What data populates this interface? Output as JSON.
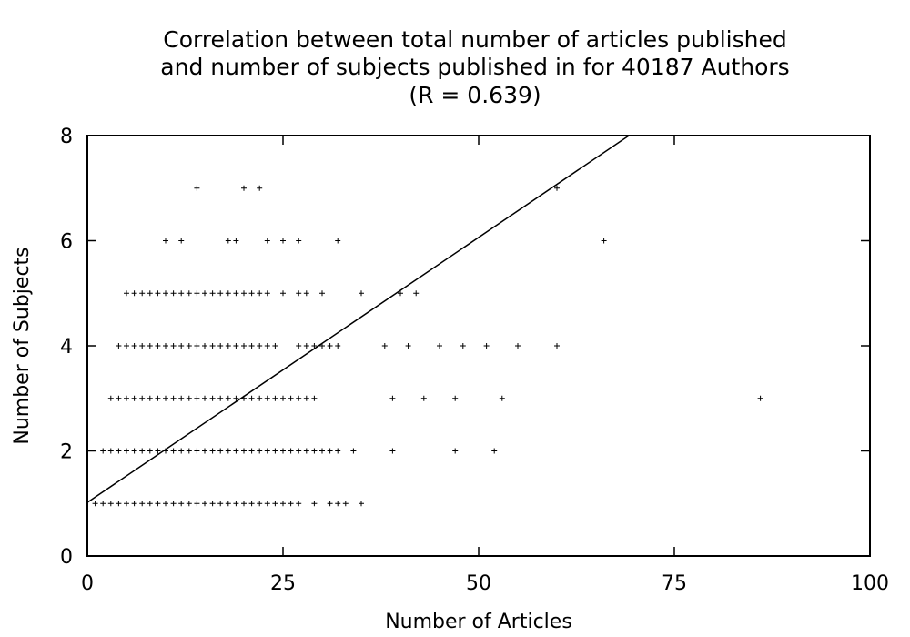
{
  "chart_data": {
    "type": "scatter",
    "title_lines": [
      "Correlation between total number of articles published",
      "and number of subjects published in for 40187 Authors",
      "(R = 0.639)"
    ],
    "xlabel": "Number of Articles",
    "ylabel": "Number of Subjects",
    "xlim": [
      0,
      100
    ],
    "ylim": [
      0,
      8
    ],
    "xticks": [
      0,
      25,
      50,
      75,
      100
    ],
    "yticks": [
      0,
      2,
      4,
      6,
      8
    ],
    "grid": false,
    "legend": "none",
    "marker": "plus",
    "fit_line": {
      "x": [
        0,
        69.2
      ],
      "y": [
        1.02,
        8.0
      ]
    },
    "points": [
      [
        1,
        1
      ],
      [
        2,
        1
      ],
      [
        3,
        1
      ],
      [
        4,
        1
      ],
      [
        5,
        1
      ],
      [
        6,
        1
      ],
      [
        7,
        1
      ],
      [
        8,
        1
      ],
      [
        9,
        1
      ],
      [
        10,
        1
      ],
      [
        11,
        1
      ],
      [
        12,
        1
      ],
      [
        13,
        1
      ],
      [
        14,
        1
      ],
      [
        15,
        1
      ],
      [
        16,
        1
      ],
      [
        17,
        1
      ],
      [
        18,
        1
      ],
      [
        19,
        1
      ],
      [
        20,
        1
      ],
      [
        21,
        1
      ],
      [
        22,
        1
      ],
      [
        23,
        1
      ],
      [
        24,
        1
      ],
      [
        25,
        1
      ],
      [
        26,
        1
      ],
      [
        27,
        1
      ],
      [
        29,
        1
      ],
      [
        31,
        1
      ],
      [
        32,
        1
      ],
      [
        33,
        1
      ],
      [
        35,
        1
      ],
      [
        2,
        2
      ],
      [
        3,
        2
      ],
      [
        4,
        2
      ],
      [
        5,
        2
      ],
      [
        6,
        2
      ],
      [
        7,
        2
      ],
      [
        8,
        2
      ],
      [
        9,
        2
      ],
      [
        10,
        2
      ],
      [
        11,
        2
      ],
      [
        12,
        2
      ],
      [
        13,
        2
      ],
      [
        14,
        2
      ],
      [
        15,
        2
      ],
      [
        16,
        2
      ],
      [
        17,
        2
      ],
      [
        18,
        2
      ],
      [
        19,
        2
      ],
      [
        20,
        2
      ],
      [
        21,
        2
      ],
      [
        22,
        2
      ],
      [
        23,
        2
      ],
      [
        24,
        2
      ],
      [
        25,
        2
      ],
      [
        26,
        2
      ],
      [
        27,
        2
      ],
      [
        28,
        2
      ],
      [
        29,
        2
      ],
      [
        30,
        2
      ],
      [
        31,
        2
      ],
      [
        32,
        2
      ],
      [
        34,
        2
      ],
      [
        39,
        2
      ],
      [
        47,
        2
      ],
      [
        52,
        2
      ],
      [
        3,
        3
      ],
      [
        4,
        3
      ],
      [
        5,
        3
      ],
      [
        6,
        3
      ],
      [
        7,
        3
      ],
      [
        8,
        3
      ],
      [
        9,
        3
      ],
      [
        10,
        3
      ],
      [
        11,
        3
      ],
      [
        12,
        3
      ],
      [
        13,
        3
      ],
      [
        14,
        3
      ],
      [
        15,
        3
      ],
      [
        16,
        3
      ],
      [
        17,
        3
      ],
      [
        18,
        3
      ],
      [
        19,
        3
      ],
      [
        20,
        3
      ],
      [
        21,
        3
      ],
      [
        22,
        3
      ],
      [
        23,
        3
      ],
      [
        24,
        3
      ],
      [
        25,
        3
      ],
      [
        26,
        3
      ],
      [
        27,
        3
      ],
      [
        28,
        3
      ],
      [
        29,
        3
      ],
      [
        39,
        3
      ],
      [
        43,
        3
      ],
      [
        47,
        3
      ],
      [
        53,
        3
      ],
      [
        86,
        3
      ],
      [
        4,
        4
      ],
      [
        5,
        4
      ],
      [
        6,
        4
      ],
      [
        7,
        4
      ],
      [
        8,
        4
      ],
      [
        9,
        4
      ],
      [
        10,
        4
      ],
      [
        11,
        4
      ],
      [
        12,
        4
      ],
      [
        13,
        4
      ],
      [
        14,
        4
      ],
      [
        15,
        4
      ],
      [
        16,
        4
      ],
      [
        17,
        4
      ],
      [
        18,
        4
      ],
      [
        19,
        4
      ],
      [
        20,
        4
      ],
      [
        21,
        4
      ],
      [
        22,
        4
      ],
      [
        23,
        4
      ],
      [
        24,
        4
      ],
      [
        27,
        4
      ],
      [
        28,
        4
      ],
      [
        29,
        4
      ],
      [
        30,
        4
      ],
      [
        31,
        4
      ],
      [
        32,
        4
      ],
      [
        38,
        4
      ],
      [
        41,
        4
      ],
      [
        45,
        4
      ],
      [
        48,
        4
      ],
      [
        51,
        4
      ],
      [
        55,
        4
      ],
      [
        60,
        4
      ],
      [
        5,
        5
      ],
      [
        6,
        5
      ],
      [
        7,
        5
      ],
      [
        8,
        5
      ],
      [
        9,
        5
      ],
      [
        10,
        5
      ],
      [
        11,
        5
      ],
      [
        12,
        5
      ],
      [
        13,
        5
      ],
      [
        14,
        5
      ],
      [
        15,
        5
      ],
      [
        16,
        5
      ],
      [
        17,
        5
      ],
      [
        18,
        5
      ],
      [
        19,
        5
      ],
      [
        20,
        5
      ],
      [
        21,
        5
      ],
      [
        22,
        5
      ],
      [
        23,
        5
      ],
      [
        25,
        5
      ],
      [
        27,
        5
      ],
      [
        28,
        5
      ],
      [
        30,
        5
      ],
      [
        35,
        5
      ],
      [
        40,
        5
      ],
      [
        42,
        5
      ],
      [
        10,
        6
      ],
      [
        12,
        6
      ],
      [
        18,
        6
      ],
      [
        19,
        6
      ],
      [
        23,
        6
      ],
      [
        25,
        6
      ],
      [
        27,
        6
      ],
      [
        32,
        6
      ],
      [
        66,
        6
      ],
      [
        14,
        7
      ],
      [
        20,
        7
      ],
      [
        22,
        7
      ],
      [
        60,
        7
      ]
    ]
  }
}
